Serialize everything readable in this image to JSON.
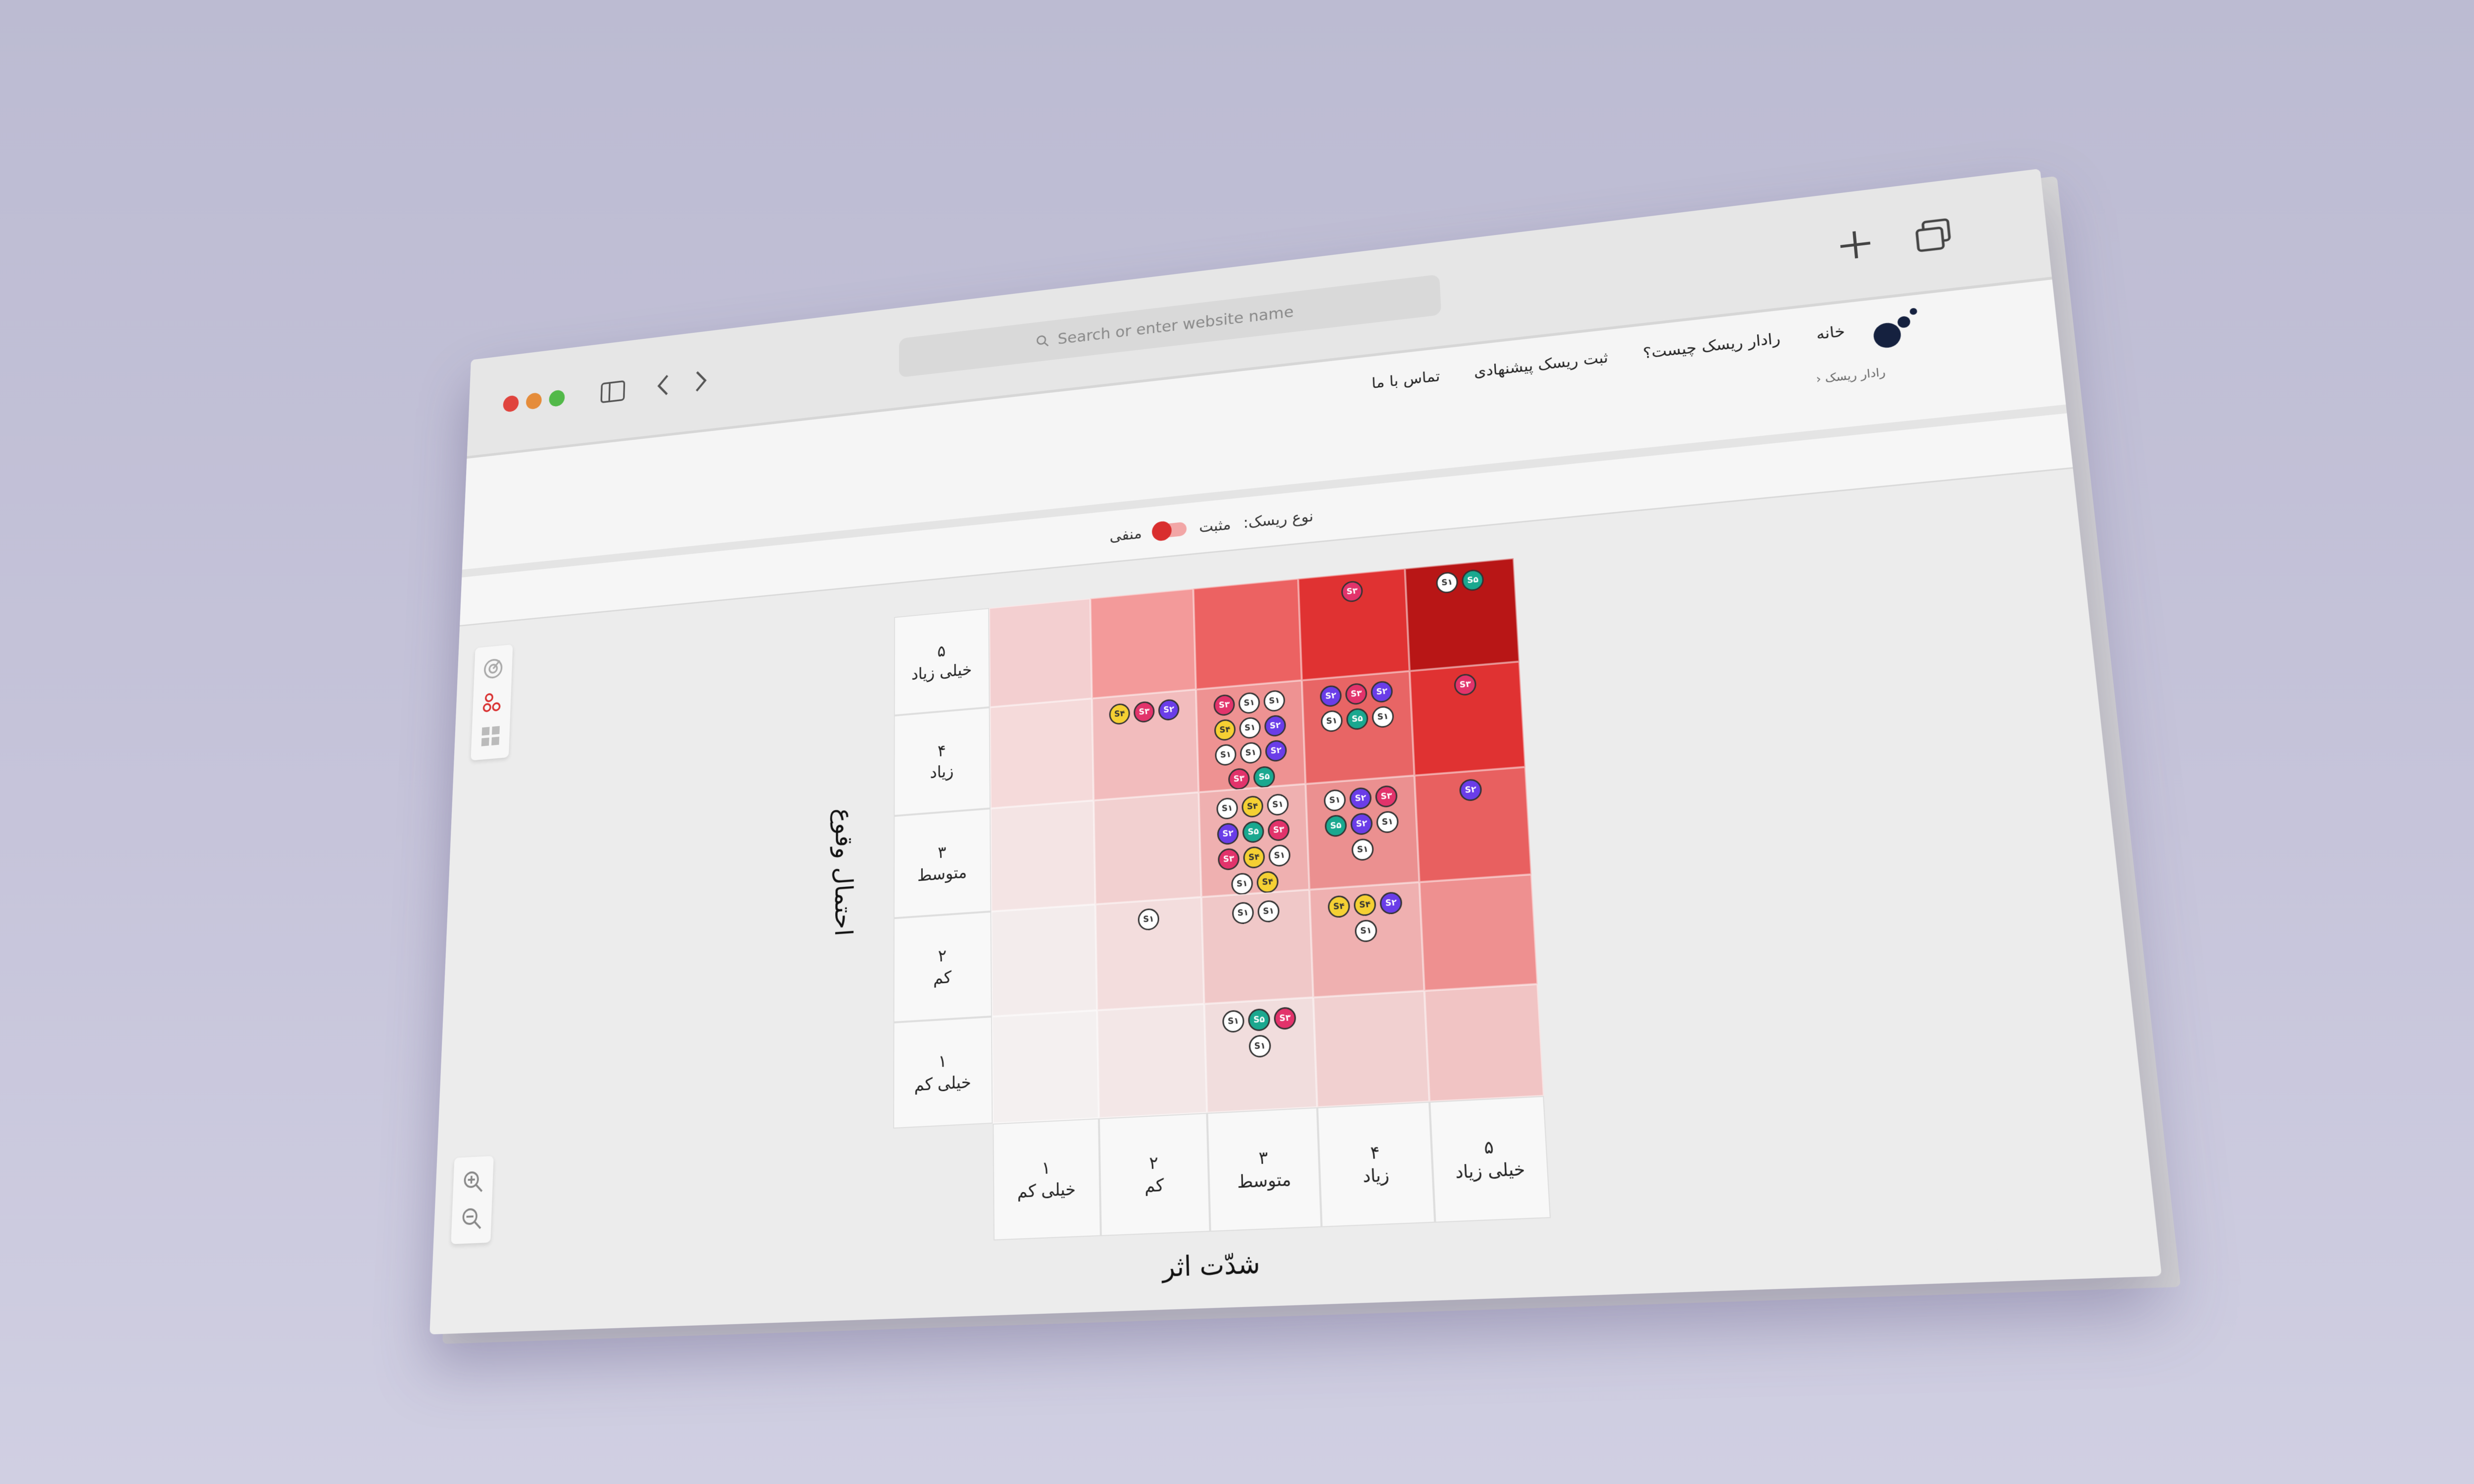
{
  "browser": {
    "search_placeholder": "Search or enter website name"
  },
  "nav": {
    "items": [
      "خانه",
      "رادار ریسک چیست؟",
      "ثبت ریسک پیشنهادی",
      "تماس با ما"
    ],
    "breadcrumb": "رادار ریسک"
  },
  "filter": {
    "label": "نوع ریسک:",
    "options": [
      "مثبت",
      "منفی"
    ]
  },
  "matrix": {
    "y_title": "احتمال وقوع",
    "x_title": "شدّت اثر",
    "badge_styles": [
      {
        "label": "S۱",
        "fill": "#ffffff",
        "text": "#333333"
      },
      {
        "label": "S۲",
        "fill": "#6a3de8",
        "text": "#ffffff"
      },
      {
        "label": "S۳",
        "fill": "#e2336b",
        "text": "#ffffff"
      },
      {
        "label": "S۴",
        "fill": "#f5d033",
        "text": "#333333"
      },
      {
        "label": "S۵",
        "fill": "#1aa88f",
        "text": "#ffffff"
      }
    ],
    "rows": [
      {
        "number": "۵",
        "label": "خیلی زیاد"
      },
      {
        "number": "۴",
        "label": "زیاد"
      },
      {
        "number": "۳",
        "label": "متوسط"
      },
      {
        "number": "۲",
        "label": "کم"
      },
      {
        "number": "۱",
        "label": "خیلی کم"
      }
    ],
    "columns": [
      {
        "number": "۱",
        "label": "خیلی کم"
      },
      {
        "number": "۲",
        "label": "کم"
      },
      {
        "number": "۳",
        "label": "متوسط"
      },
      {
        "number": "۴",
        "label": "زیاد"
      },
      {
        "number": "۵",
        "label": "خیلی زیاد"
      }
    ],
    "cells": [
      [
        {
          "color": "#f3cfd0",
          "badges": []
        },
        {
          "color": "#f39a9a",
          "badges": []
        },
        {
          "color": "#ec6262",
          "badges": []
        },
        {
          "color": "#e03232",
          "badges": [
            "S۳"
          ]
        },
        {
          "color": "#b81616",
          "badges": [
            "S۱",
            "S۵"
          ]
        }
      ],
      [
        {
          "color": "#f5dada",
          "badges": []
        },
        {
          "color": "#f2bcbd",
          "badges": [
            "S۴",
            "S۳",
            "S۲"
          ]
        },
        {
          "color": "#ee9292",
          "badges": [
            "S۳",
            "S۱",
            "S۱",
            "S۴",
            "S۱",
            "S۲",
            "S۱",
            "S۱",
            "S۲",
            "S۳",
            "S۵"
          ]
        },
        {
          "color": "#e86565",
          "badges": [
            "S۲",
            "S۳",
            "S۲",
            "S۱",
            "S۵",
            "S۱"
          ]
        },
        {
          "color": "#e03232",
          "badges": [
            "S۳"
          ]
        }
      ],
      [
        {
          "color": "#f4e4e4",
          "badges": []
        },
        {
          "color": "#f2d0d0",
          "badges": []
        },
        {
          "color": "#efb0b0",
          "badges": [
            "S۱",
            "S۴",
            "S۱",
            "S۲",
            "S۵",
            "S۳",
            "S۳",
            "S۴",
            "S۱",
            "S۱",
            "S۴"
          ]
        },
        {
          "color": "#eb9090",
          "badges": [
            "S۱",
            "S۲",
            "S۳",
            "S۵",
            "S۲",
            "S۱",
            "S۱"
          ]
        },
        {
          "color": "#e86060",
          "badges": [
            "S۲"
          ]
        }
      ],
      [
        {
          "color": "#f3ecec",
          "badges": []
        },
        {
          "color": "#f3dddd",
          "badges": [
            "S۱"
          ]
        },
        {
          "color": "#f0c8c8",
          "badges": [
            "S۱",
            "S۱"
          ]
        },
        {
          "color": "#efb0b0",
          "badges": [
            "S۴",
            "S۴",
            "S۲",
            "S۱"
          ]
        },
        {
          "color": "#ee9090",
          "badges": []
        }
      ],
      [
        {
          "color": "#f4f0f0",
          "badges": []
        },
        {
          "color": "#f3e7e7",
          "badges": []
        },
        {
          "color": "#f1dddd",
          "badges": [
            "S۱",
            "S۵",
            "S۳",
            "S۱"
          ]
        },
        {
          "color": "#f1d0d0",
          "badges": []
        },
        {
          "color": "#f1c4c4",
          "badges": []
        }
      ]
    ]
  }
}
